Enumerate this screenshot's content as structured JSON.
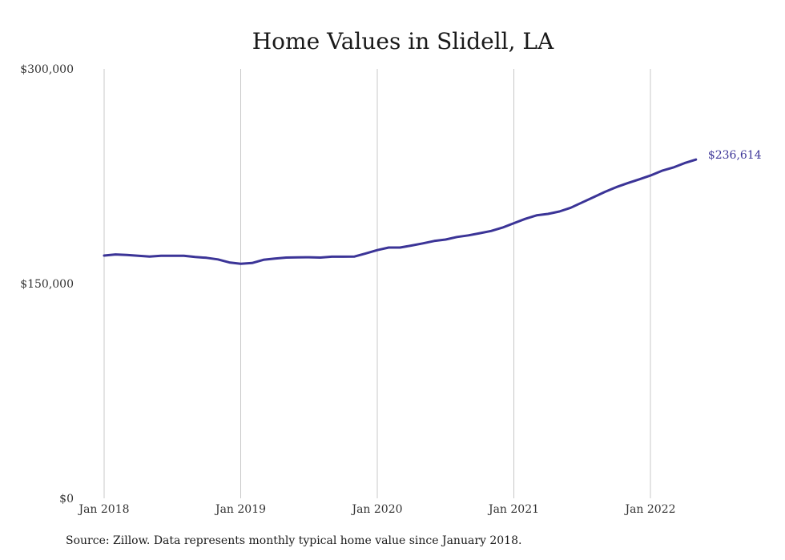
{
  "chart_data": {
    "type": "line",
    "title": "Home Values in Slidell, LA",
    "xlabel": "",
    "ylabel": "",
    "ylim": [
      0,
      300000
    ],
    "y_ticks": [
      {
        "value": 0,
        "label": "$0"
      },
      {
        "value": 150000,
        "label": "$150,000"
      },
      {
        "value": 300000,
        "label": "$300,000"
      }
    ],
    "x_ticks": [
      {
        "value": "2018-01",
        "label": "Jan 2018"
      },
      {
        "value": "2019-01",
        "label": "Jan 2019"
      },
      {
        "value": "2020-01",
        "label": "Jan 2020"
      },
      {
        "value": "2021-01",
        "label": "Jan 2021"
      },
      {
        "value": "2022-01",
        "label": "Jan 2022"
      }
    ],
    "grid": "vertical",
    "line_color": "#3b3497",
    "end_label": "$236,614",
    "series": [
      {
        "x": [
          "2018-01",
          "2018-02",
          "2018-03",
          "2018-04",
          "2018-05",
          "2018-06",
          "2018-07",
          "2018-08",
          "2018-09",
          "2018-10",
          "2018-11",
          "2018-12",
          "2019-01",
          "2019-02",
          "2019-03",
          "2019-04",
          "2019-05",
          "2019-06",
          "2019-07",
          "2019-08",
          "2019-09",
          "2019-10",
          "2019-11",
          "2019-12",
          "2020-01",
          "2020-02",
          "2020-03",
          "2020-04",
          "2020-05",
          "2020-06",
          "2020-07",
          "2020-08",
          "2020-09",
          "2020-10",
          "2020-11",
          "2020-12",
          "2021-01",
          "2021-02",
          "2021-03",
          "2021-04",
          "2021-05",
          "2021-06",
          "2021-07",
          "2021-08",
          "2021-09",
          "2021-10",
          "2021-11",
          "2021-12",
          "2022-01",
          "2022-02",
          "2022-03",
          "2022-04",
          "2022-05"
        ],
        "y": [
          169600,
          170400,
          170000,
          169500,
          168900,
          169400,
          169400,
          169500,
          168600,
          168000,
          166900,
          164800,
          163900,
          164400,
          166600,
          167500,
          168200,
          168300,
          168400,
          168200,
          168800,
          168800,
          168900,
          171100,
          173400,
          175200,
          175200,
          176600,
          178100,
          179800,
          180800,
          182600,
          183700,
          185200,
          186800,
          189100,
          192200,
          195200,
          197700,
          198700,
          200400,
          203000,
          206700,
          210400,
          214100,
          217400,
          220200,
          222800,
          225500,
          228800,
          231100,
          234200,
          236614
        ]
      }
    ]
  },
  "footer": {
    "source": "Source: Zillow. Data represents monthly typical home value since January 2018."
  }
}
